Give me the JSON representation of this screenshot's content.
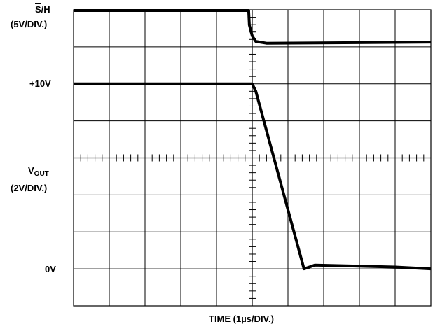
{
  "labels": {
    "sh_prefix": "S",
    "sh_suffix": "/H",
    "sh_scale": "(5V/DIV.)",
    "plus10v": "+10V",
    "vout_main": "V",
    "vout_sub": "OUT",
    "vout_scale": "(2V/DIV.)",
    "zero_v": "0V",
    "time_axis": "TIME (1µs/DIV.)"
  },
  "chart_data": {
    "type": "line",
    "title": "",
    "xlabel": "TIME (1µs/DIV.)",
    "grid": true,
    "divisions": {
      "x": 10,
      "y": 8
    },
    "xlim": [
      -5,
      5
    ],
    "x_unit": "µs",
    "series": [
      {
        "name": "S/H",
        "scale": "5V/DIV.",
        "points": [
          [
            -5.0,
            1.0
          ],
          [
            -0.1,
            1.0
          ],
          [
            -0.08,
            0.6
          ],
          [
            0.0,
            0.3
          ],
          [
            0.1,
            0.15
          ],
          [
            0.4,
            0.1
          ],
          [
            5.0,
            0.13
          ]
        ]
      },
      {
        "name": "VOUT",
        "scale": "2V/DIV.",
        "y_unit": "V",
        "points": [
          [
            -5.0,
            10.0
          ],
          [
            -0.1,
            10.0
          ],
          [
            0.0,
            10.0
          ],
          [
            0.1,
            9.6
          ],
          [
            1.45,
            0.0
          ],
          [
            1.6,
            0.1
          ],
          [
            1.75,
            0.2
          ],
          [
            3.0,
            0.15
          ],
          [
            4.0,
            0.1
          ],
          [
            5.0,
            0.0
          ]
        ]
      }
    ],
    "reference_levels": [
      "+10V",
      "0V"
    ]
  }
}
